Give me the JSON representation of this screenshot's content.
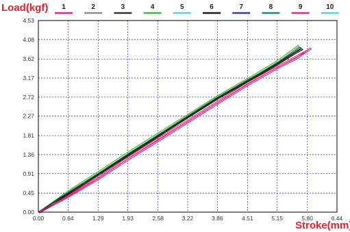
{
  "chart_data": {
    "type": "line",
    "ylabel": "Load(kgf)",
    "xlabel": "Stroke(mm)",
    "xlim": [
      0.0,
      6.44
    ],
    "ylim": [
      0.0,
      4.53
    ],
    "x_ticks": [
      "0.00",
      "0.64",
      "1.29",
      "1.93",
      "2.58",
      "3.22",
      "3.86",
      "4.51",
      "5.15",
      "5.80",
      "6.44"
    ],
    "y_ticks": [
      "0.00",
      "0.45",
      "0.91",
      "1.36",
      "1.81",
      "2.27",
      "2.72",
      "3.17",
      "3.62",
      "4.08",
      "4.53"
    ],
    "grid": true,
    "legend_position": "top",
    "colors": {
      "label": "#e8202a",
      "axis": "#000000",
      "grid": "#3b3bbf"
    },
    "series": [
      {
        "name": "1",
        "color": "#e8207a",
        "x": [
          0.0,
          0.64,
          1.29,
          1.93,
          2.58,
          3.22,
          3.86,
          4.51,
          5.15,
          5.5,
          5.8,
          5.86
        ],
        "y": [
          0.0,
          0.4,
          0.83,
          1.3,
          1.75,
          2.18,
          2.62,
          3.07,
          3.45,
          3.66,
          3.83,
          3.88
        ]
      },
      {
        "name": "2",
        "color": "#8c8c8c",
        "x": [
          0.0,
          0.64,
          1.29,
          1.93,
          2.58,
          3.22,
          3.86,
          4.51,
          5.15,
          5.55,
          5.66
        ],
        "y": [
          0.0,
          0.46,
          0.91,
          1.37,
          1.82,
          2.27,
          2.72,
          3.12,
          3.52,
          3.8,
          3.88
        ]
      },
      {
        "name": "3",
        "color": "#333333",
        "x": [
          0.0,
          0.64,
          1.29,
          1.93,
          2.58,
          3.22,
          3.86,
          4.51,
          5.15,
          5.52,
          5.64
        ],
        "y": [
          0.0,
          0.47,
          0.92,
          1.38,
          1.83,
          2.28,
          2.72,
          3.13,
          3.53,
          3.8,
          3.9
        ]
      },
      {
        "name": "4",
        "color": "#3cb43c",
        "x": [
          0.0,
          0.64,
          1.29,
          1.93,
          2.58,
          3.22,
          3.86,
          4.51,
          5.15,
          5.48,
          5.6
        ],
        "y": [
          0.0,
          0.5,
          0.96,
          1.42,
          1.87,
          2.31,
          2.75,
          3.16,
          3.58,
          3.84,
          3.94
        ]
      },
      {
        "name": "5",
        "color": "#5ac8e6",
        "x": [],
        "y": []
      },
      {
        "name": "6",
        "color": "#1a1a1a",
        "x": [
          0.0,
          0.64,
          1.29,
          1.93,
          2.58,
          3.22,
          3.86,
          4.51,
          5.15,
          5.54,
          5.68
        ],
        "y": [
          0.0,
          0.45,
          0.9,
          1.36,
          1.81,
          2.26,
          2.7,
          3.11,
          3.51,
          3.78,
          3.86
        ]
      },
      {
        "name": "7",
        "color": "#2a3cb4",
        "x": [],
        "y": []
      },
      {
        "name": "8",
        "color": "#1e8c78",
        "x": [],
        "y": []
      },
      {
        "name": "9",
        "color": "#e8207a",
        "x": [
          0.0,
          0.64,
          1.29,
          1.93,
          2.58,
          3.22,
          3.86,
          4.51,
          5.15,
          5.55,
          5.78
        ],
        "y": [
          0.0,
          0.38,
          0.8,
          1.26,
          1.7,
          2.14,
          2.58,
          3.02,
          3.42,
          3.64,
          3.82
        ]
      },
      {
        "name": "10",
        "color": "#5ac8e6",
        "x": [],
        "y": []
      }
    ]
  }
}
